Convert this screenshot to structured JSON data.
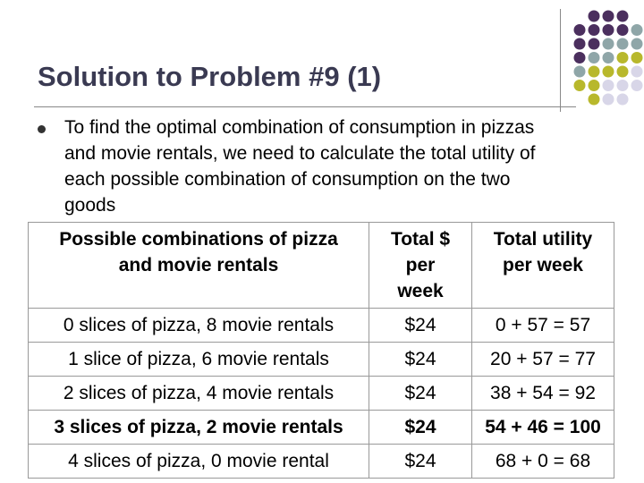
{
  "title": "Solution to Problem #9 (1)",
  "bullet_lines": [
    "To find the optimal combination of consumption in pizzas",
    "and movie rentals, we need to calculate the total utility of",
    "each possible combination of consumption on the two",
    "goods"
  ],
  "table": {
    "headers": [
      [
        "Possible combinations of pizza",
        "and movie rentals"
      ],
      [
        "Total $",
        "per",
        "week"
      ],
      [
        "Total utility",
        "per week"
      ]
    ],
    "rows": [
      {
        "combo": "0 slices of pizza, 8 movie rentals",
        "total": "$24",
        "utility": "0 + 57 = 57",
        "bold": false
      },
      {
        "combo": "1 slice of pizza, 6 movie rentals",
        "total": "$24",
        "utility": "20 + 57 = 77",
        "bold": false
      },
      {
        "combo": "2  slices of pizza, 4 movie rentals",
        "total": "$24",
        "utility": "38 + 54 = 92",
        "bold": false
      },
      {
        "combo": "3 slices of pizza, 2 movie rentals",
        "total": "$24",
        "utility": "54 + 46 = 100",
        "bold": true
      },
      {
        "combo": "4 slices of pizza, 0 movie rental",
        "total": "$24",
        "utility": "68 + 0 = 68",
        "bold": false
      }
    ]
  },
  "colors": {
    "purple": "#4b2f5e",
    "gray": "#8fa6a8",
    "olive": "#b8b82c",
    "light": "#d8d6e8",
    "title": "#3a3a52"
  }
}
